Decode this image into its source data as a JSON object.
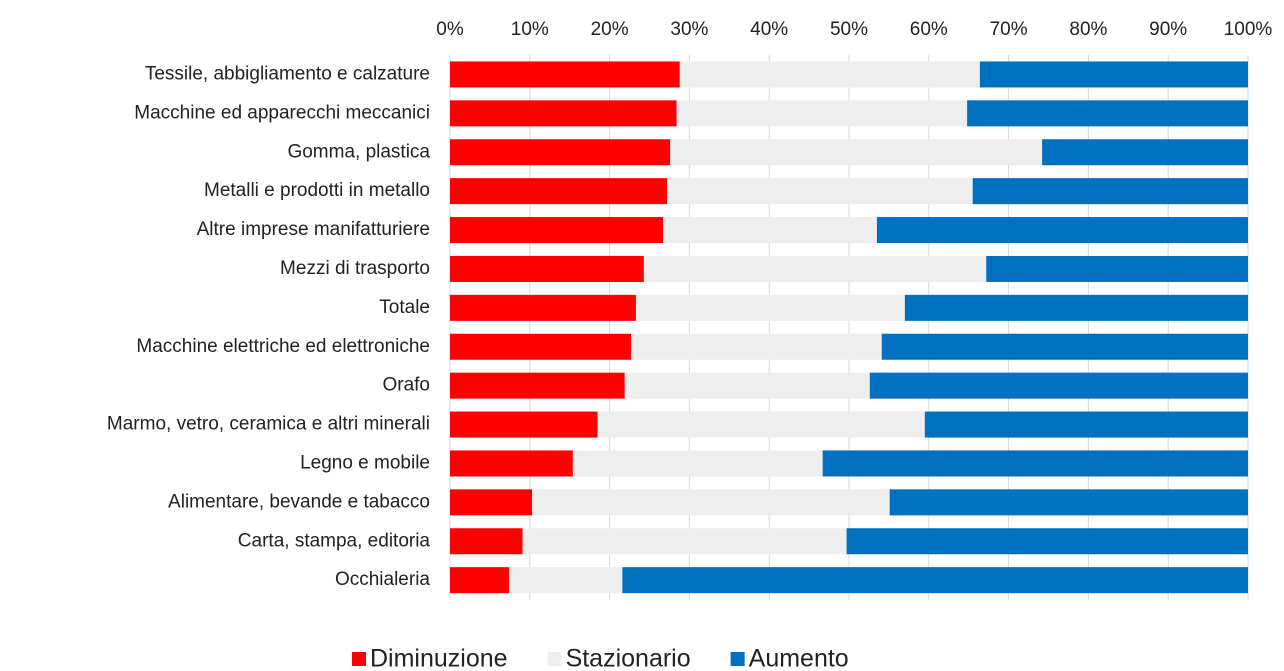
{
  "chart_data": {
    "type": "stacked_barh",
    "categories": [
      "Tessile, abbigliamento e calzature",
      "Macchine ed apparecchi meccanici",
      "Gomma, plastica",
      "Metalli e prodotti in metallo",
      "Altre imprese manifatturiere",
      "Mezzi di trasporto",
      "Totale",
      "Macchine elettriche ed elettroniche",
      "Orafo",
      "Marmo, vetro, ceramica e altri minerali",
      "Legno e mobile",
      "Alimentare, bevande e tabacco",
      "Carta, stampa, editoria",
      "Occhialeria"
    ],
    "series": [
      {
        "name": "Diminuzione",
        "color": "#ff0000",
        "values": [
          28.8,
          28.4,
          27.6,
          27.2,
          26.7,
          24.3,
          23.3,
          22.7,
          21.9,
          18.5,
          15.4,
          10.3,
          9.1,
          7.4
        ]
      },
      {
        "name": "Stazionario",
        "color": "#eeeeee",
        "values": [
          37.6,
          36.4,
          46.6,
          38.3,
          26.8,
          42.9,
          33.7,
          31.4,
          30.7,
          41.0,
          31.3,
          44.8,
          40.6,
          14.2
        ]
      },
      {
        "name": "Aumento",
        "color": "#0070c0",
        "values": [
          33.6,
          35.2,
          25.8,
          34.5,
          46.5,
          32.8,
          43.0,
          45.9,
          47.4,
          40.5,
          53.3,
          44.9,
          50.3,
          78.4
        ]
      }
    ],
    "xlim": [
      0,
      100
    ],
    "xticks": [
      {
        "value": 0,
        "label": "0%"
      },
      {
        "value": 10,
        "label": "10%"
      },
      {
        "value": 20,
        "label": "20%"
      },
      {
        "value": 30,
        "label": "30%"
      },
      {
        "value": 40,
        "label": "40%"
      },
      {
        "value": 50,
        "label": "50%"
      },
      {
        "value": 60,
        "label": "60%"
      },
      {
        "value": 70,
        "label": "70%"
      },
      {
        "value": 80,
        "label": "80%"
      },
      {
        "value": 90,
        "label": "90%"
      },
      {
        "value": 100,
        "label": "100%"
      }
    ],
    "grid": true,
    "legend": "bottom"
  }
}
